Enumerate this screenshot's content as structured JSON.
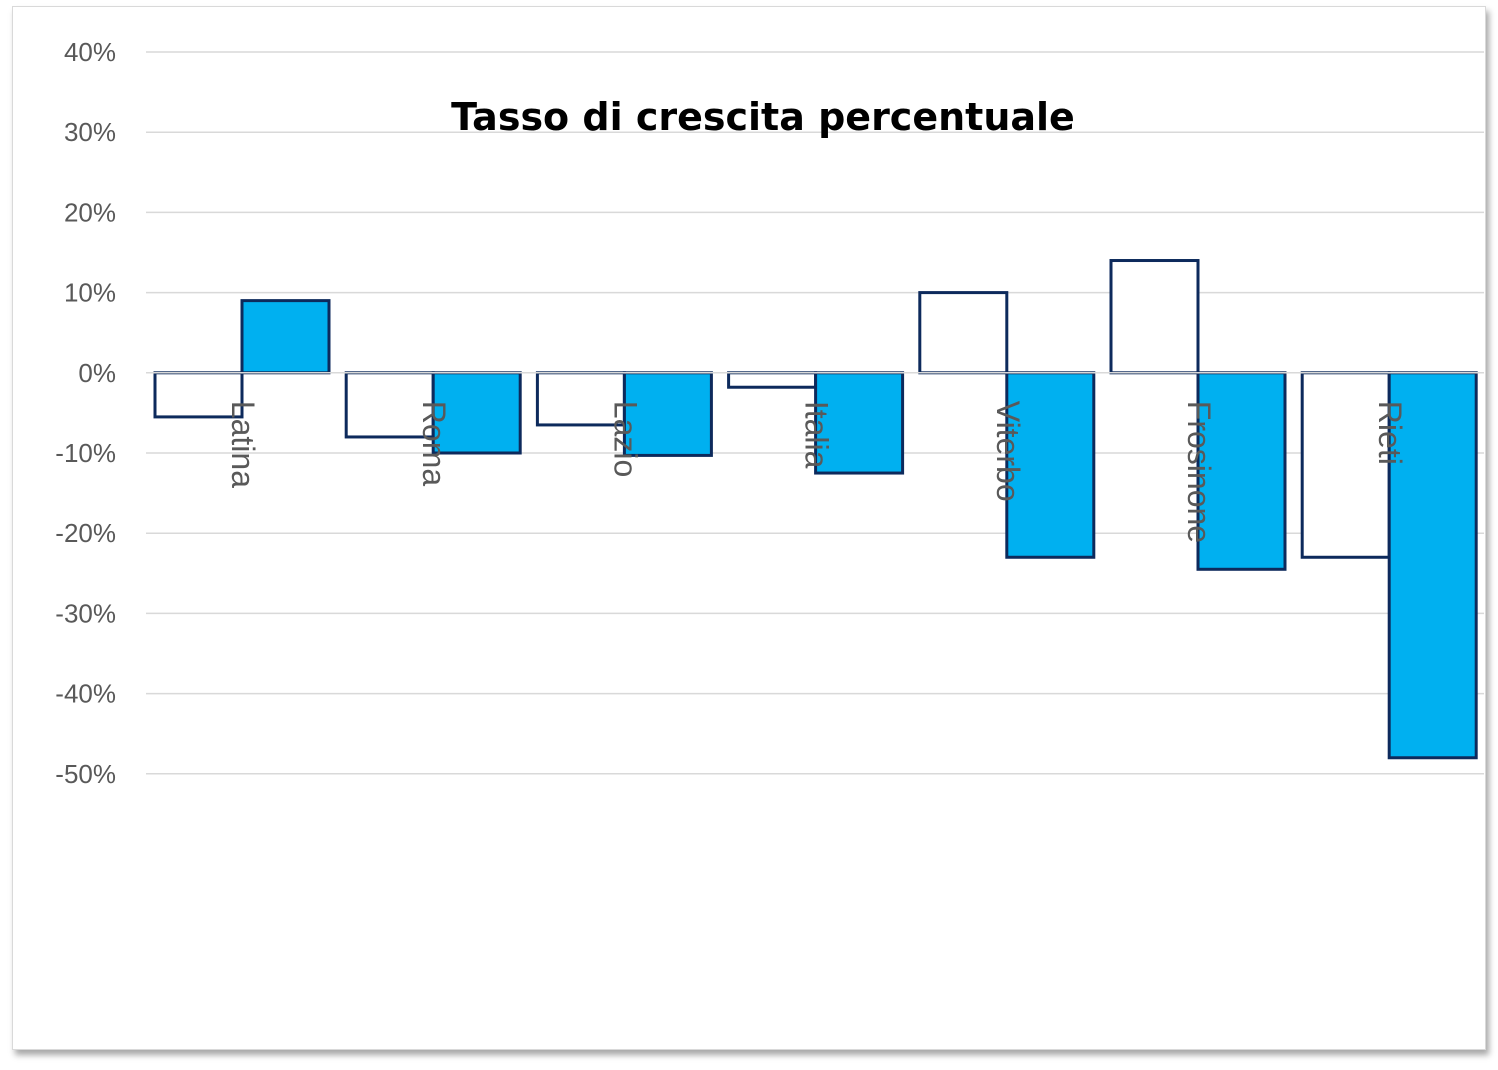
{
  "chart_data": {
    "type": "bar",
    "title": "Tasso di crescita percentuale",
    "xlabel": "",
    "ylabel": "",
    "categories": [
      "Latina",
      "Roma",
      "Lazio",
      "Italia",
      "Viterbo",
      "Frosinone",
      "Rieti"
    ],
    "series": [
      {
        "values": [
          -5.5,
          -8,
          -6.5,
          -1.8,
          10,
          14,
          -23
        ],
        "fill": "#ffffff",
        "stroke": "#0d2a5c"
      },
      {
        "values": [
          9,
          -10,
          -10.3,
          -12.5,
          -23,
          -24.5,
          -48
        ],
        "fill": "#00b0f0",
        "stroke": "#0d2a5c"
      }
    ],
    "ylim": [
      -50,
      40
    ],
    "yticks": [
      "40%",
      "30%",
      "20%",
      "10%",
      "0%",
      "-10%",
      "-20%",
      "-30%",
      "-40%",
      "-50%"
    ],
    "ytick_values": [
      40,
      30,
      20,
      10,
      0,
      -10,
      -20,
      -30,
      -40,
      -50
    ],
    "grid": true,
    "gridColor": "#d9d9d9"
  }
}
